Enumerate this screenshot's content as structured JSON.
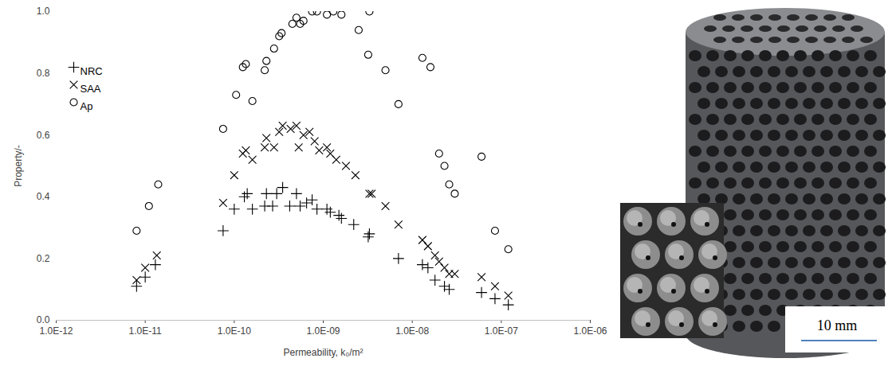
{
  "chart_data": {
    "type": "scatter",
    "x_label": "Permeability, k₀/m²",
    "y_label": "Property/-",
    "log": "x",
    "grid": false,
    "legend": "top-left",
    "xlim": [
      1e-12,
      1e-06
    ],
    "xticks": [
      {
        "value": 1e-12,
        "label": "1.0E-12"
      },
      {
        "value": 1e-11,
        "label": "1.0E-11"
      },
      {
        "value": 1e-10,
        "label": "1.0E-10"
      },
      {
        "value": 1e-09,
        "label": "1.0E-09"
      },
      {
        "value": 1e-08,
        "label": "1.0E-08"
      },
      {
        "value": 1e-07,
        "label": "1.0E-07"
      },
      {
        "value": 1e-06,
        "label": "1.0E-06"
      }
    ],
    "ylim": [
      0,
      1
    ],
    "yticks": [
      {
        "value": 0,
        "label": "0.0"
      },
      {
        "value": 0.2,
        "label": "0.2"
      },
      {
        "value": 0.4,
        "label": "0.4"
      },
      {
        "value": 0.6,
        "label": "0.6"
      },
      {
        "value": 0.8,
        "label": "0.8"
      },
      {
        "value": 1,
        "label": "1.0"
      }
    ],
    "series": [
      {
        "name": "NRC",
        "marker": "plus",
        "color": "#000000",
        "x": [
          8e-12,
          1e-11,
          1.3e-11,
          7.5e-11,
          1e-10,
          1.3e-10,
          1.4e-10,
          1.6e-10,
          2.2e-10,
          2.3e-10,
          2.7e-10,
          3e-10,
          3.5e-10,
          4.2e-10,
          5e-10,
          5.5e-10,
          6.5e-10,
          7.5e-10,
          8.5e-10,
          1.1e-09,
          1.2e-09,
          1.5e-09,
          1.6e-09,
          2.2e-09,
          3.2e-09,
          3.3e-09,
          7e-09,
          1.3e-08,
          1.5e-08,
          1.8e-08,
          2.3e-08,
          2.6e-08,
          6e-08,
          8.5e-08,
          1.2e-07
        ],
        "values": [
          0.11,
          0.14,
          0.18,
          0.29,
          0.36,
          0.4,
          0.41,
          0.36,
          0.37,
          0.41,
          0.37,
          0.41,
          0.43,
          0.37,
          0.41,
          0.37,
          0.38,
          0.39,
          0.36,
          0.36,
          0.35,
          0.34,
          0.33,
          0.31,
          0.27,
          0.28,
          0.2,
          0.18,
          0.17,
          0.13,
          0.11,
          0.1,
          0.09,
          0.07,
          0.05
        ]
      },
      {
        "name": "SAA",
        "marker": "times",
        "color": "#000000",
        "x": [
          8e-12,
          1e-11,
          1.35e-11,
          7.5e-11,
          1e-10,
          1.25e-10,
          1.35e-10,
          1.6e-10,
          2.2e-10,
          2.3e-10,
          2.8e-10,
          3.2e-10,
          3.5e-10,
          4.3e-10,
          5e-10,
          5.3e-10,
          6e-10,
          7e-10,
          8e-10,
          9e-10,
          1.1e-09,
          1.2e-09,
          1.4e-09,
          1.8e-09,
          2.3e-09,
          3.3e-09,
          3.5e-09,
          5e-09,
          7e-09,
          1.3e-08,
          1.5e-08,
          1.8e-08,
          2e-08,
          2.3e-08,
          2.6e-08,
          3e-08,
          6e-08,
          8.5e-08,
          1.2e-07
        ],
        "values": [
          0.13,
          0.17,
          0.21,
          0.38,
          0.47,
          0.54,
          0.55,
          0.52,
          0.56,
          0.59,
          0.56,
          0.61,
          0.63,
          0.62,
          0.63,
          0.56,
          0.6,
          0.61,
          0.58,
          0.55,
          0.56,
          0.54,
          0.52,
          0.5,
          0.47,
          0.41,
          0.41,
          0.37,
          0.31,
          0.26,
          0.24,
          0.21,
          0.19,
          0.17,
          0.15,
          0.15,
          0.14,
          0.11,
          0.08
        ]
      },
      {
        "name": "Ap",
        "marker": "circle",
        "color": "#000000",
        "x": [
          8e-12,
          1.1e-11,
          1.4e-11,
          7.5e-11,
          1.05e-10,
          1.6e-10,
          1.25e-10,
          1.35e-10,
          2.2e-10,
          2.3e-10,
          2.8e-10,
          3.2e-10,
          3.4e-10,
          4.5e-10,
          5e-10,
          5.5e-10,
          6e-10,
          7.5e-10,
          8.5e-10,
          1.1e-09,
          1.3e-09,
          1.6e-09,
          2.5e-09,
          3.2e-09,
          3.3e-09,
          5e-09,
          7e-09,
          1.3e-08,
          1.6e-08,
          2e-08,
          2.3e-08,
          2.6e-08,
          3e-08,
          6e-08,
          8.5e-08,
          1.2e-07
        ],
        "values": [
          0.29,
          0.37,
          0.44,
          0.62,
          0.73,
          0.71,
          0.82,
          0.83,
          0.81,
          0.84,
          0.88,
          0.92,
          0.93,
          0.96,
          0.98,
          0.96,
          0.97,
          1.0,
          1.0,
          0.99,
          1.0,
          0.99,
          0.94,
          0.86,
          1.0,
          0.81,
          0.7,
          0.85,
          0.82,
          0.54,
          0.5,
          0.44,
          0.41,
          0.53,
          0.29,
          0.23
        ]
      }
    ]
  },
  "photo": {
    "scale_bar_label": "10 mm"
  }
}
